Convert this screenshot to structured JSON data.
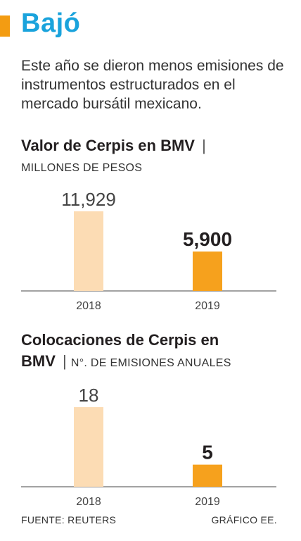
{
  "header": {
    "title": "Bajó",
    "intro": "Este año se dieron menos emisiones de instrumentos estructurados en el mercado bursátil mexicano."
  },
  "colors": {
    "accent": "#f39c12",
    "title": "#1aa3dc",
    "bar_2018": "#fcdcb4",
    "bar_2019": "#f6a11d",
    "axis": "#444444"
  },
  "chart_data": [
    {
      "type": "bar",
      "title": "Valor de Cerpis en BMV",
      "separator": "|",
      "ylabel": "MILLONES DE PESOS",
      "categories": [
        "2018",
        "2019"
      ],
      "values": [
        11929,
        5900
      ],
      "value_labels": [
        "11,929",
        "5,900"
      ],
      "ylim": [
        0,
        11929
      ]
    },
    {
      "type": "bar",
      "title_line1": "Colocaciones de Cerpis en",
      "title_line2": "BMV",
      "separator": "|",
      "ylabel": "N°. DE EMISIONES ANUALES",
      "categories": [
        "2018",
        "2019"
      ],
      "values": [
        18,
        5
      ],
      "value_labels": [
        "18",
        "5"
      ],
      "ylim": [
        0,
        18
      ]
    }
  ],
  "footer": {
    "source": "FUENTE: REUTERS",
    "credit": "GRÁFICO EE."
  }
}
